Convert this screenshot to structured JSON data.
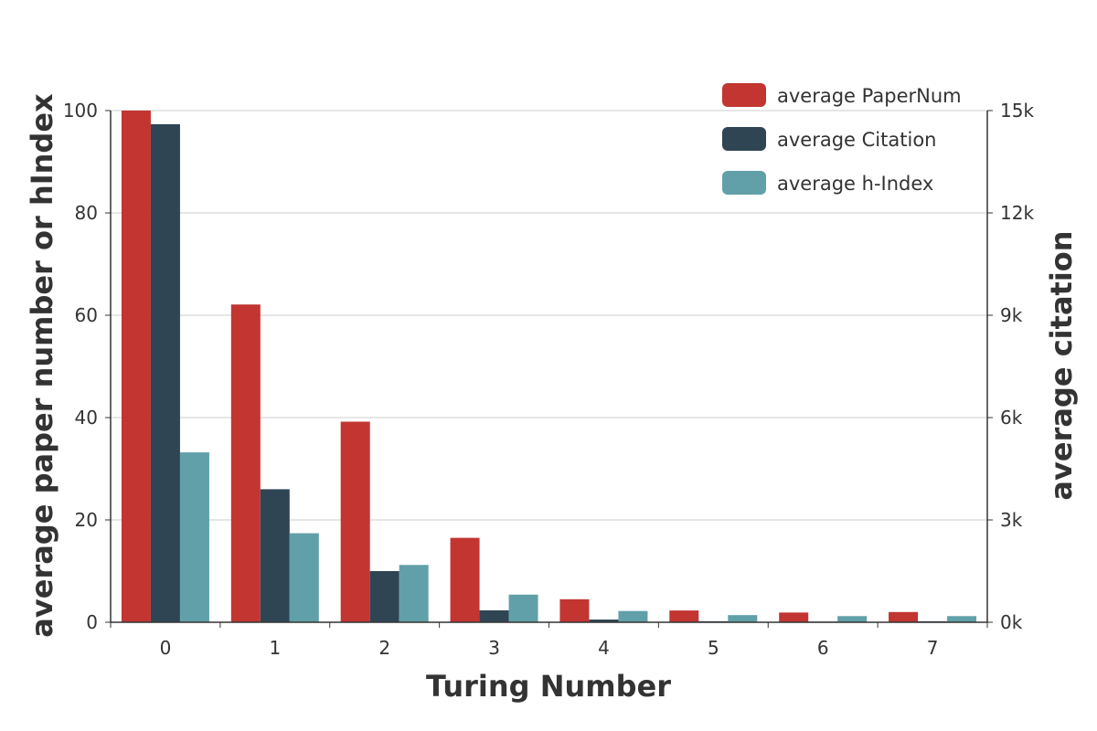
{
  "chart_data": {
    "type": "bar",
    "title": "",
    "categories": [
      "0",
      "1",
      "2",
      "3",
      "4",
      "5",
      "6",
      "7"
    ],
    "xlabel": "Turing Number",
    "ylabel_left": "average paper number or hIndex",
    "ylabel_right": "average citation",
    "ylim_left": [
      0,
      100
    ],
    "ylim_right": [
      0,
      15000
    ],
    "yticks_left": [
      "0",
      "20",
      "40",
      "60",
      "80",
      "100"
    ],
    "yticks_right": [
      "0k",
      "3k",
      "6k",
      "9k",
      "12k",
      "15k"
    ],
    "grid": true,
    "legend_position": "top-right",
    "series": [
      {
        "name": "average PaperNum",
        "axis": "left",
        "color": "#c23531",
        "values": [
          100,
          62.1,
          39.2,
          16.5,
          4.5,
          2.3,
          1.9,
          2.0
        ]
      },
      {
        "name": "average Citation",
        "axis": "right",
        "color": "#2f4554",
        "values": [
          14600,
          3900,
          1500,
          350,
          80,
          30,
          20,
          30
        ]
      },
      {
        "name": "average h-Index",
        "axis": "left",
        "color": "#61a0a8",
        "values": [
          33.2,
          17.4,
          11.2,
          5.4,
          2.2,
          1.4,
          1.2,
          1.2
        ]
      }
    ]
  }
}
